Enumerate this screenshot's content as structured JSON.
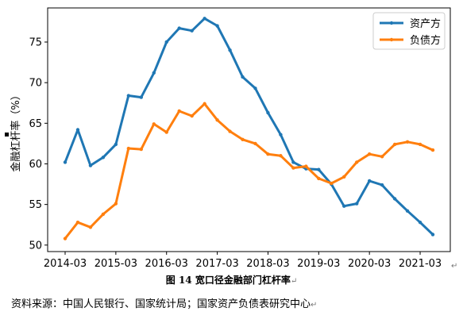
{
  "chart_data": {
    "type": "line",
    "ylabel": "金融杠杆率（%）",
    "xlabel": "",
    "ylim": [
      49.2,
      79.2
    ],
    "yticks": [
      50,
      55,
      60,
      65,
      70,
      75
    ],
    "x": [
      "2014-03",
      "2014-06",
      "2014-09",
      "2014-12",
      "2015-03",
      "2015-06",
      "2015-09",
      "2015-12",
      "2016-03",
      "2016-06",
      "2016-09",
      "2016-12",
      "2017-03",
      "2017-06",
      "2017-09",
      "2017-12",
      "2018-03",
      "2018-06",
      "2018-09",
      "2018-12",
      "2019-03",
      "2019-06",
      "2019-09",
      "2019-12",
      "2020-03",
      "2020-06",
      "2020-09",
      "2020-12",
      "2021-03",
      "2021-06"
    ],
    "xticks": [
      "2014-03",
      "2015-03",
      "2016-03",
      "2017-03",
      "2018-03",
      "2019-03",
      "2020-03",
      "2021-03"
    ],
    "series": [
      {
        "name": "资产方",
        "color": "#1f77b4",
        "values": [
          60.2,
          64.2,
          59.8,
          60.8,
          62.4,
          68.4,
          68.2,
          71.2,
          75.0,
          76.7,
          76.4,
          77.9,
          77.0,
          74.0,
          70.7,
          69.3,
          66.3,
          63.6,
          60.2,
          59.4,
          59.3,
          57.5,
          54.8,
          55.1,
          57.9,
          57.4,
          55.7,
          54.2,
          52.8,
          51.3
        ]
      },
      {
        "name": "负债方",
        "color": "#ff7f0e",
        "values": [
          50.8,
          52.8,
          52.2,
          53.8,
          55.1,
          61.9,
          61.8,
          64.9,
          63.9,
          66.5,
          65.9,
          67.4,
          65.4,
          64.0,
          63.0,
          62.5,
          61.2,
          61.0,
          59.5,
          59.7,
          58.2,
          57.6,
          58.4,
          60.2,
          61.2,
          60.9,
          62.4,
          62.7,
          62.4,
          61.7
        ]
      }
    ],
    "legend_position": "top-right",
    "grid": false
  },
  "caption": "图  14  宽口径金融部门杠杆率",
  "source_note": "资料来源：中国人民银行、国家统计局；国家资产负债表研究中心"
}
